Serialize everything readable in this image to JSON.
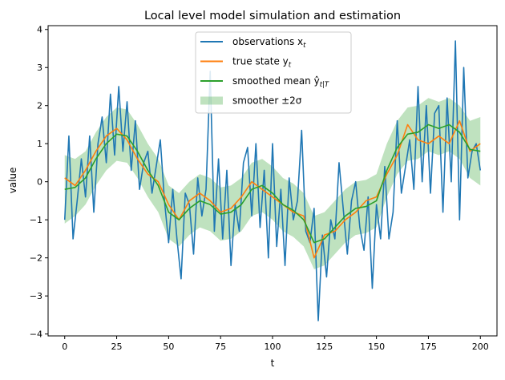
{
  "chart_data": {
    "type": "line",
    "title": "Local level model simulation and estimation",
    "xlabel": "t",
    "ylabel": "value",
    "xlim": [
      -8,
      208
    ],
    "ylim": [
      -4.05,
      4.1
    ],
    "xticks": [
      0,
      25,
      50,
      75,
      100,
      125,
      150,
      175,
      200
    ],
    "yticks": [
      -4,
      -3,
      -2,
      -1,
      0,
      1,
      2,
      3,
      4
    ],
    "ytick_labels": [
      "−4",
      "−3",
      "−2",
      "−1",
      "0",
      "1",
      "2",
      "3",
      "4"
    ],
    "grid": false,
    "legend_placement": "upper center",
    "legend": [
      {
        "label": "observations x",
        "sub": "t",
        "color": "#1f77b4",
        "kind": "line"
      },
      {
        "label": "true state y",
        "sub": "t",
        "color": "#ff7f0e",
        "kind": "line"
      },
      {
        "label": "smoothed mean ŷ",
        "sub": "t|T",
        "color": "#2ca02c",
        "kind": "line"
      },
      {
        "label": "smoother ±2σ",
        "sub": "",
        "color": "#2ca02c",
        "kind": "band"
      }
    ],
    "observations": {
      "name": "observations x_t",
      "color": "#1f77b4",
      "x_step": 2,
      "values": [
        -1.0,
        1.2,
        -1.5,
        -0.5,
        0.6,
        -0.4,
        1.2,
        -0.8,
        1.0,
        1.7,
        0.5,
        2.3,
        0.7,
        2.5,
        0.8,
        2.1,
        0.3,
        1.6,
        -0.2,
        0.5,
        0.8,
        -0.3,
        0.4,
        1.1,
        -0.5,
        -1.6,
        -0.2,
        -1.5,
        -2.55,
        -0.3,
        -0.6,
        -1.9,
        0.1,
        -0.9,
        -0.2,
        2.9,
        -1.3,
        0.6,
        -1.5,
        0.3,
        -2.2,
        -0.6,
        -1.3,
        0.5,
        0.9,
        -0.9,
        1.0,
        -1.2,
        0.3,
        -2.0,
        1.0,
        -1.7,
        -0.2,
        -2.2,
        0.1,
        -1.0,
        -0.5,
        1.35,
        -1.3,
        -1.6,
        -0.7,
        -3.65,
        -1.4,
        -2.5,
        -1.0,
        -1.5,
        0.5,
        -0.7,
        -1.9,
        -0.5,
        0.0,
        -1.2,
        -1.8,
        -0.4,
        -2.8,
        -0.6,
        -1.5,
        0.4,
        -1.5,
        -0.8,
        1.6,
        -0.3,
        0.4,
        1.1,
        -0.2,
        2.5,
        0.0,
        2.0,
        -0.3,
        1.8,
        2.0,
        -0.8,
        2.2,
        0.0,
        3.7,
        -1.0,
        3.0,
        0.1,
        0.8,
        1.0,
        0.3
      ]
    },
    "true_state": {
      "name": "true state y_t",
      "color": "#ff7f0e",
      "x_step": 5,
      "values": [
        0.1,
        -0.1,
        0.3,
        0.8,
        1.2,
        1.4,
        1.1,
        0.6,
        0.2,
        0.0,
        -0.6,
        -1.0,
        -0.5,
        -0.3,
        -0.5,
        -0.8,
        -0.7,
        -0.4,
        0.0,
        -0.2,
        -0.4,
        -0.6,
        -0.8,
        -0.9,
        -2.0,
        -1.4,
        -1.3,
        -1.0,
        -0.8,
        -0.5,
        -0.4,
        0.2,
        0.7,
        1.5,
        1.1,
        1.0,
        1.2,
        1.0,
        1.6,
        0.8,
        1.0
      ]
    },
    "smoothed_mean": {
      "name": "smoothed mean ŷ_t|T",
      "color": "#2ca02c",
      "x_step": 5,
      "values": [
        -0.2,
        -0.15,
        0.1,
        0.6,
        1.0,
        1.25,
        1.2,
        0.8,
        0.3,
        -0.1,
        -0.8,
        -1.0,
        -0.7,
        -0.5,
        -0.6,
        -0.85,
        -0.8,
        -0.6,
        -0.2,
        -0.1,
        -0.3,
        -0.6,
        -0.75,
        -1.0,
        -1.6,
        -1.5,
        -1.2,
        -0.9,
        -0.7,
        -0.65,
        -0.5,
        0.3,
        0.9,
        1.25,
        1.3,
        1.5,
        1.4,
        1.5,
        1.3,
        0.85,
        0.8
      ]
    },
    "band": {
      "name": "smoother ±2σ",
      "color": "#2ca02c",
      "alpha": 0.3,
      "x_step": 5,
      "lower": [
        -1.1,
        -0.9,
        -0.6,
        -0.1,
        0.3,
        0.55,
        0.5,
        0.1,
        -0.4,
        -0.8,
        -1.5,
        -1.7,
        -1.4,
        -1.2,
        -1.3,
        -1.55,
        -1.5,
        -1.3,
        -0.9,
        -0.8,
        -1.0,
        -1.3,
        -1.45,
        -1.7,
        -2.3,
        -2.2,
        -1.9,
        -1.6,
        -1.4,
        -1.35,
        -1.2,
        -0.4,
        0.2,
        0.55,
        0.6,
        0.8,
        0.7,
        0.8,
        0.6,
        0.1,
        -0.1
      ],
      "upper": [
        0.7,
        0.6,
        0.8,
        1.3,
        1.7,
        1.95,
        1.9,
        1.5,
        1.0,
        0.6,
        -0.1,
        -0.3,
        0.0,
        0.2,
        0.1,
        -0.15,
        -0.1,
        0.1,
        0.5,
        0.6,
        0.4,
        0.1,
        -0.05,
        -0.3,
        -0.9,
        -0.8,
        -0.5,
        -0.2,
        0.0,
        0.05,
        0.2,
        1.0,
        1.6,
        1.95,
        2.0,
        2.2,
        2.1,
        2.2,
        2.0,
        1.6,
        1.7
      ]
    }
  }
}
